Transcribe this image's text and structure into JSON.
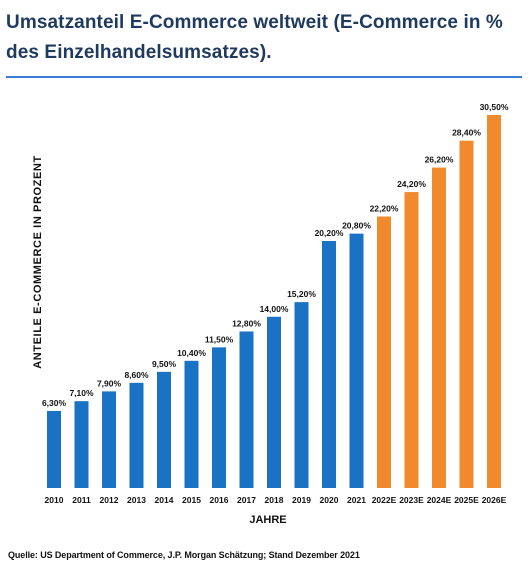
{
  "chart_data": {
    "type": "bar",
    "title": "Umsatzanteil E-Commerce weltweit (E-Commerce in % des Einzelhandelsumsatzes).",
    "xlabel": "JAHRE",
    "ylabel": "ANTEILE E-COMMERCE IN PROZENT",
    "categories": [
      "2010",
      "2011",
      "2012",
      "2013",
      "2014",
      "2015",
      "2016",
      "2017",
      "2018",
      "2019",
      "2020",
      "2021",
      "2022E",
      "2023E",
      "2024E",
      "2025E",
      "2026E"
    ],
    "values": [
      6.3,
      7.1,
      7.9,
      8.6,
      9.5,
      10.4,
      11.5,
      12.8,
      14.0,
      15.2,
      20.2,
      20.8,
      22.2,
      24.2,
      26.2,
      28.4,
      30.5
    ],
    "value_labels": [
      "6,30%",
      "7,10%",
      "7,90%",
      "8,60%",
      "9,50%",
      "10,40%",
      "11,50%",
      "12,80%",
      "14,00%",
      "15,20%",
      "20,20%",
      "20,80%",
      "22,20%",
      "24,20%",
      "26,20%",
      "28,40%",
      "30,50%"
    ],
    "ylim": [
      0,
      30.5
    ],
    "grid": false,
    "legend": "none",
    "colors": {
      "actual": "#1a72c4",
      "estimate": "#f08a2c"
    },
    "estimate_start_index": 12,
    "source": "Quelle: US Department of Commerce, J.P. Morgan Schätzung; Stand Dezember 2021"
  }
}
